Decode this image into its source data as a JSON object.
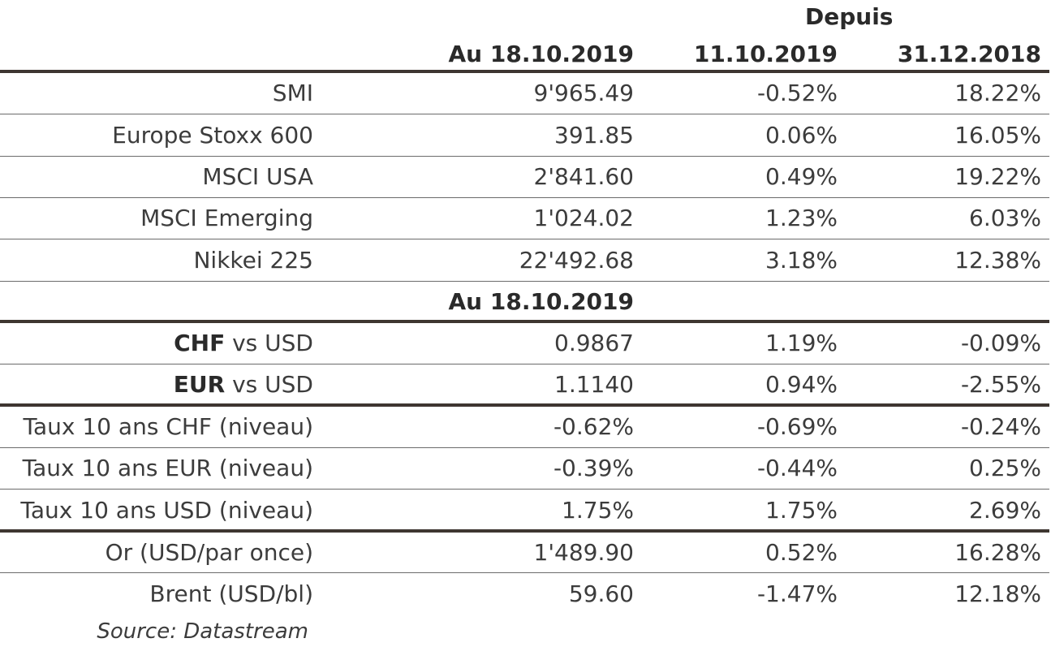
{
  "header": {
    "group_label": "Depuis",
    "col1": "Au 18.10.2019",
    "col2": "11.10.2019",
    "col3": "31.12.2018"
  },
  "equities": [
    {
      "name": "SMI",
      "value": "9'965.49",
      "week": "-0.52%",
      "ytd": "18.22%"
    },
    {
      "name": "Europe Stoxx 600",
      "value": "391.85",
      "week": "0.06%",
      "ytd": "16.05%"
    },
    {
      "name": "MSCI USA",
      "value": "2'841.60",
      "week": "0.49%",
      "ytd": "19.22%"
    },
    {
      "name": "MSCI Emerging",
      "value": "1'024.02",
      "week": "1.23%",
      "ytd": "6.03%"
    },
    {
      "name": "Nikkei 225",
      "value": "22'492.68",
      "week": "3.18%",
      "ytd": "12.38%"
    }
  ],
  "section2_header": "Au 18.10.2019",
  "fx": [
    {
      "currency": "CHF",
      "rest": " vs USD",
      "value": "0.9867",
      "week": "1.19%",
      "ytd": "-0.09%"
    },
    {
      "currency": "EUR",
      "rest": " vs USD",
      "value": "1.1140",
      "week": "0.94%",
      "ytd": "-2.55%"
    }
  ],
  "rates": [
    {
      "name": "Taux 10 ans CHF (niveau)",
      "value": "-0.62%",
      "week": "-0.69%",
      "ytd": "-0.24%"
    },
    {
      "name": "Taux 10 ans EUR (niveau)",
      "value": "-0.39%",
      "week": "-0.44%",
      "ytd": "0.25%"
    },
    {
      "name": "Taux 10 ans USD (niveau)",
      "value": "1.75%",
      "week": "1.75%",
      "ytd": "2.69%"
    }
  ],
  "commodities": [
    {
      "name": "Or (USD/par once)",
      "value": "1'489.90",
      "week": "0.52%",
      "ytd": "16.28%"
    },
    {
      "name": "Brent (USD/bl)",
      "value": "59.60",
      "week": "-1.47%",
      "ytd": "12.18%"
    }
  ],
  "source": "Source: Datastream"
}
